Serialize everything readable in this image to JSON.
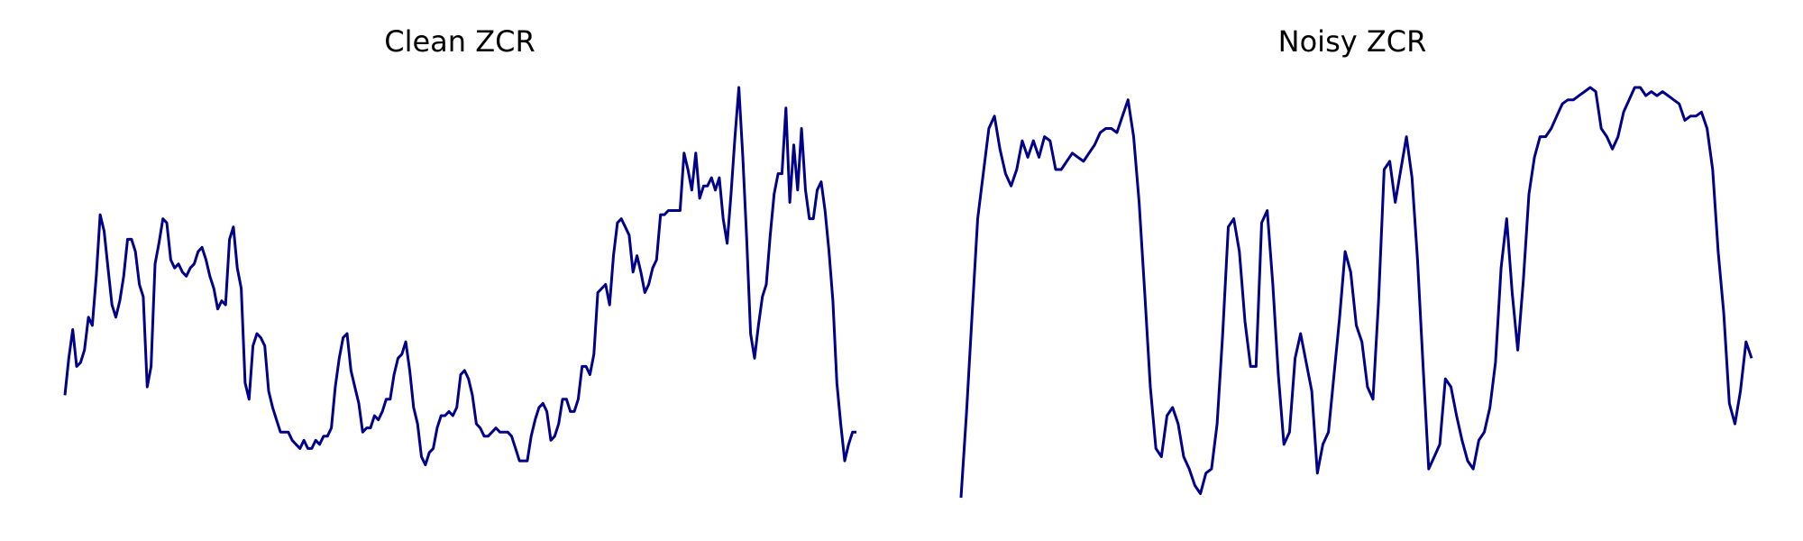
{
  "colors": {
    "line": "#00008b",
    "background": "#ffffff"
  },
  "chart_data": [
    {
      "type": "line",
      "title": "Clean ZCR",
      "xlabel": "",
      "ylabel": "",
      "axes_visible": false,
      "grid": false,
      "ylim": [
        0,
        1
      ],
      "series": [
        {
          "values": [
            0.25,
            0.34,
            0.41,
            0.32,
            0.33,
            0.36,
            0.44,
            0.42,
            0.54,
            0.69,
            0.65,
            0.56,
            0.47,
            0.44,
            0.48,
            0.54,
            0.63,
            0.63,
            0.6,
            0.52,
            0.49,
            0.27,
            0.32,
            0.57,
            0.62,
            0.68,
            0.67,
            0.58,
            0.56,
            0.57,
            0.55,
            0.54,
            0.56,
            0.57,
            0.6,
            0.61,
            0.58,
            0.54,
            0.51,
            0.46,
            0.48,
            0.47,
            0.63,
            0.66,
            0.56,
            0.51,
            0.28,
            0.24,
            0.37,
            0.4,
            0.39,
            0.37,
            0.26,
            0.22,
            0.19,
            0.16,
            0.16,
            0.16,
            0.14,
            0.13,
            0.12,
            0.14,
            0.12,
            0.12,
            0.14,
            0.13,
            0.15,
            0.15,
            0.17,
            0.27,
            0.34,
            0.39,
            0.4,
            0.31,
            0.27,
            0.23,
            0.16,
            0.17,
            0.17,
            0.2,
            0.19,
            0.21,
            0.24,
            0.24,
            0.3,
            0.34,
            0.35,
            0.38,
            0.31,
            0.22,
            0.18,
            0.1,
            0.08,
            0.11,
            0.12,
            0.17,
            0.2,
            0.2,
            0.21,
            0.2,
            0.22,
            0.3,
            0.31,
            0.29,
            0.25,
            0.18,
            0.17,
            0.15,
            0.15,
            0.16,
            0.17,
            0.16,
            0.16,
            0.16,
            0.15,
            0.12,
            0.09,
            0.09,
            0.09,
            0.15,
            0.19,
            0.22,
            0.23,
            0.21,
            0.14,
            0.15,
            0.18,
            0.24,
            0.24,
            0.21,
            0.21,
            0.24,
            0.32,
            0.32,
            0.3,
            0.35,
            0.5,
            0.51,
            0.52,
            0.47,
            0.59,
            0.67,
            0.68,
            0.66,
            0.64,
            0.55,
            0.59,
            0.55,
            0.5,
            0.52,
            0.56,
            0.58,
            0.69,
            0.69,
            0.7,
            0.7,
            0.7,
            0.7,
            0.84,
            0.8,
            0.75,
            0.84,
            0.73,
            0.76,
            0.76,
            0.78,
            0.75,
            0.78,
            0.68,
            0.62,
            0.74,
            0.88,
            1.0,
            0.83,
            0.63,
            0.4,
            0.34,
            0.42,
            0.49,
            0.52,
            0.64,
            0.74,
            0.79,
            0.79,
            0.95,
            0.72,
            0.86,
            0.75,
            0.9,
            0.75,
            0.68,
            0.68,
            0.75,
            0.77,
            0.7,
            0.6,
            0.48,
            0.28,
            0.18,
            0.09,
            0.13,
            0.16,
            0.16
          ]
        }
      ]
    },
    {
      "type": "line",
      "title": "Noisy ZCR",
      "xlabel": "",
      "ylabel": "",
      "axes_visible": false,
      "grid": false,
      "ylim": [
        0,
        1
      ],
      "series": [
        {
          "values": [
            0.0,
            0.21,
            0.45,
            0.68,
            0.79,
            0.9,
            0.93,
            0.85,
            0.79,
            0.76,
            0.8,
            0.87,
            0.83,
            0.87,
            0.83,
            0.88,
            0.87,
            0.8,
            0.8,
            0.82,
            0.84,
            0.83,
            0.82,
            0.84,
            0.86,
            0.89,
            0.9,
            0.9,
            0.89,
            0.93,
            0.97,
            0.88,
            0.72,
            0.5,
            0.27,
            0.12,
            0.1,
            0.2,
            0.22,
            0.18,
            0.1,
            0.07,
            0.03,
            0.01,
            0.06,
            0.07,
            0.18,
            0.4,
            0.66,
            0.68,
            0.6,
            0.43,
            0.32,
            0.32,
            0.67,
            0.7,
            0.52,
            0.3,
            0.13,
            0.16,
            0.34,
            0.4,
            0.33,
            0.26,
            0.06,
            0.13,
            0.16,
            0.3,
            0.44,
            0.6,
            0.55,
            0.42,
            0.38,
            0.27,
            0.24,
            0.48,
            0.8,
            0.82,
            0.72,
            0.8,
            0.88,
            0.78,
            0.58,
            0.32,
            0.07,
            0.1,
            0.13,
            0.29,
            0.27,
            0.2,
            0.14,
            0.09,
            0.07,
            0.14,
            0.16,
            0.22,
            0.33,
            0.56,
            0.68,
            0.5,
            0.36,
            0.53,
            0.74,
            0.83,
            0.88,
            0.88,
            0.9,
            0.93,
            0.96,
            0.97,
            0.97,
            0.98,
            0.99,
            1.0,
            0.99,
            0.9,
            0.88,
            0.85,
            0.88,
            0.94,
            0.97,
            1.0,
            1.0,
            0.98,
            0.99,
            0.98,
            0.99,
            0.98,
            0.97,
            0.96,
            0.92,
            0.93,
            0.93,
            0.94,
            0.9,
            0.8,
            0.6,
            0.45,
            0.23,
            0.18,
            0.26,
            0.38,
            0.34
          ]
        }
      ]
    }
  ]
}
